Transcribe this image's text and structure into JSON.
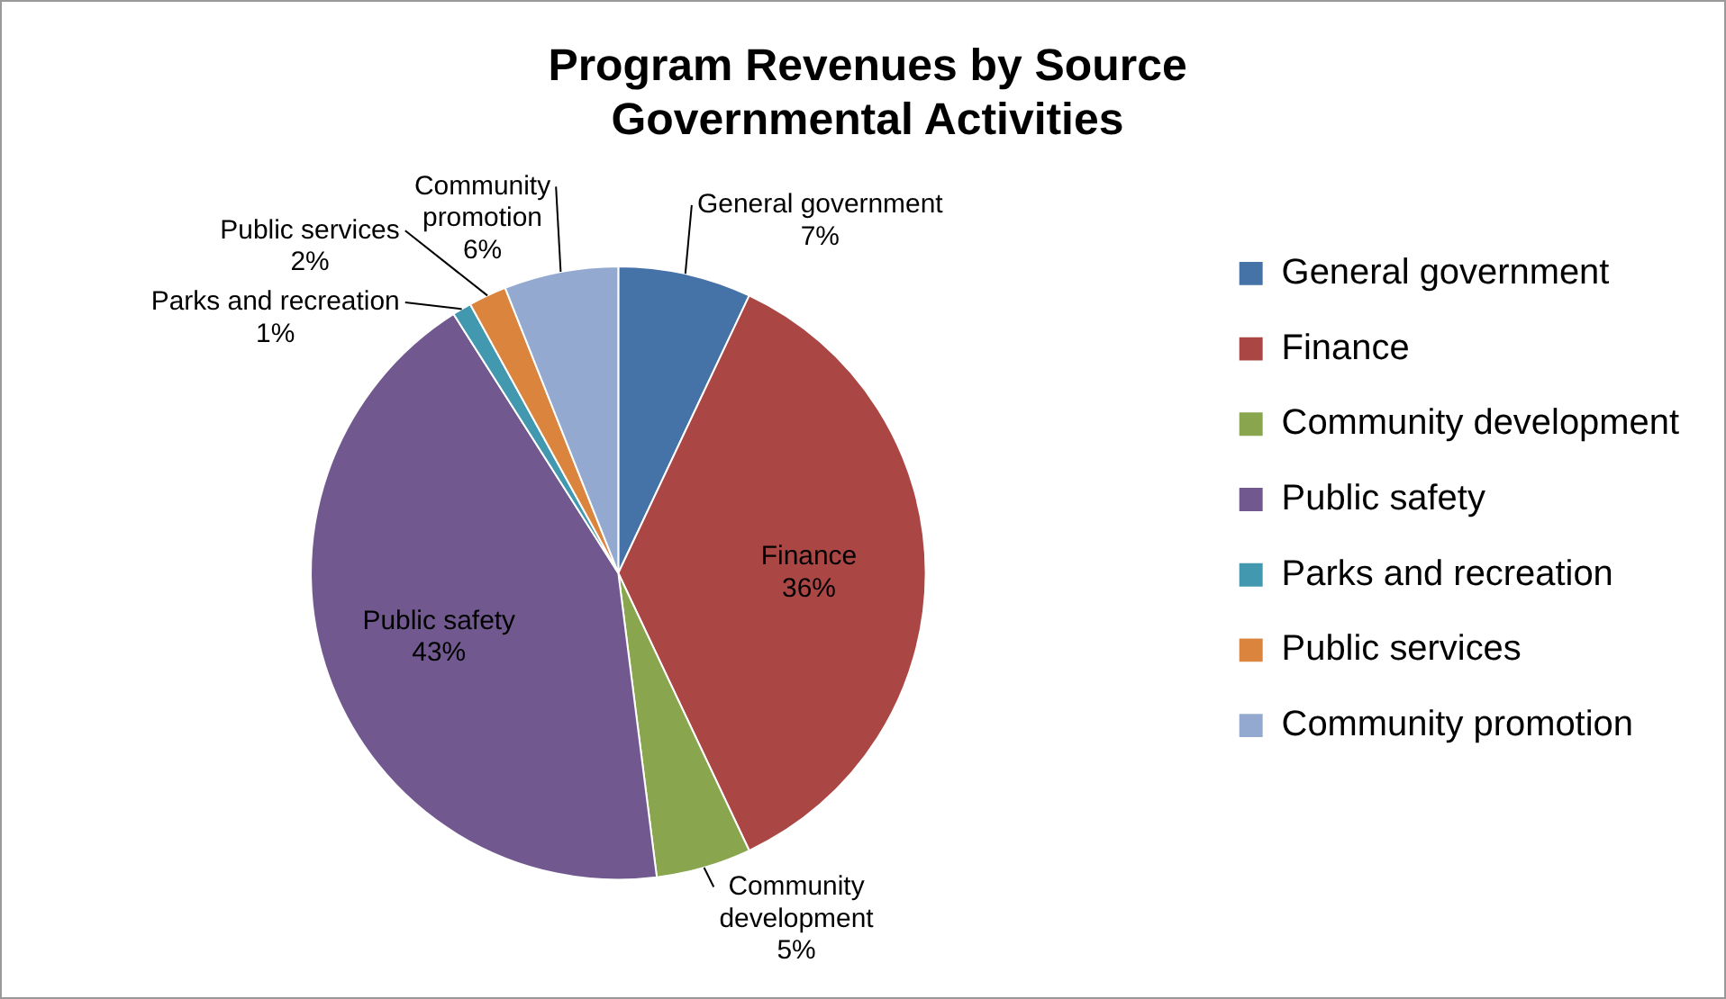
{
  "chart_data": {
    "type": "pie",
    "title": "Program Revenues by Source\nGovernmental Activities",
    "categories": [
      "General government",
      "Finance",
      "Community development",
      "Public safety",
      "Parks and recreation",
      "Public services",
      "Community promotion"
    ],
    "values": [
      7,
      36,
      5,
      43,
      1,
      2,
      6
    ],
    "value_labels": [
      "7%",
      "36%",
      "5%",
      "43%",
      "1%",
      "2%",
      "6%"
    ],
    "colors": [
      "#4572a7",
      "#aa4643",
      "#89a54e",
      "#71588f",
      "#4198af",
      "#db843d",
      "#93a9cf"
    ],
    "legend": "right"
  }
}
